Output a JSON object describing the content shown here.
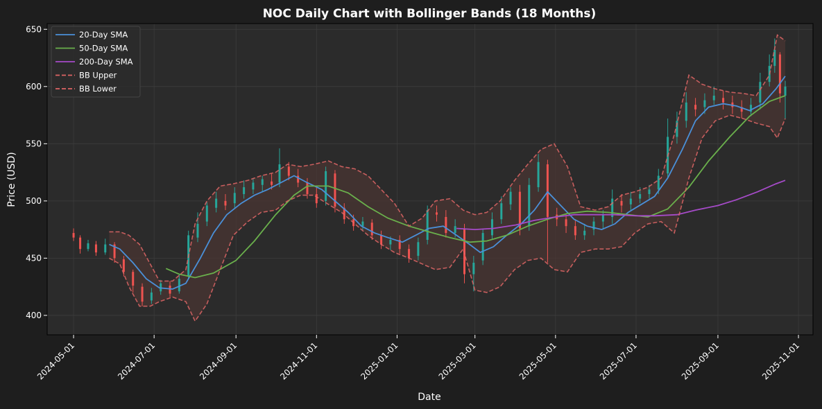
{
  "chart_data": {
    "type": "line",
    "title": "NOC Daily Chart with Bollinger Bands (18 Months)",
    "xlabel": "Date",
    "ylabel": "Price (USD)",
    "ylim": [
      383,
      655
    ],
    "xlim": [
      "2024-04-11",
      "2025-11-12"
    ],
    "grid": true,
    "legend_position": "top-left",
    "x_ticks": [
      "2024-05-01",
      "2024-07-01",
      "2024-09-01",
      "2024-11-01",
      "2025-01-01",
      "2025-03-01",
      "2025-05-01",
      "2025-07-01",
      "2025-09-01",
      "2025-11-01"
    ],
    "y_ticks": [
      400,
      450,
      500,
      550,
      600,
      650
    ],
    "colors": {
      "background": "#1e1e1e",
      "plot_background": "#2b2b2b",
      "up_candle": "#26a69a",
      "down_candle": "#ef5350",
      "band_fill": "#4a3533",
      "grid": "#3c3c3c"
    },
    "series": [
      {
        "name": "20-Day SMA",
        "color": "#4a90d9",
        "style": "solid",
        "x": [
          "2024-05-28",
          "2024-06-05",
          "2024-06-15",
          "2024-06-25",
          "2024-07-05",
          "2024-07-15",
          "2024-07-25",
          "2024-08-05",
          "2024-08-15",
          "2024-08-25",
          "2024-09-05",
          "2024-09-15",
          "2024-09-25",
          "2024-10-05",
          "2024-10-15",
          "2024-10-25",
          "2024-11-05",
          "2024-11-15",
          "2024-11-25",
          "2024-12-05",
          "2024-12-15",
          "2024-12-25",
          "2025-01-05",
          "2025-01-15",
          "2025-01-25",
          "2025-02-05",
          "2025-02-15",
          "2025-02-25",
          "2025-03-05",
          "2025-03-15",
          "2025-03-25",
          "2025-04-05",
          "2025-04-15",
          "2025-04-25",
          "2025-05-05",
          "2025-05-15",
          "2025-05-25",
          "2025-06-05",
          "2025-06-15",
          "2025-06-25",
          "2025-07-05",
          "2025-07-15",
          "2025-07-25",
          "2025-08-05",
          "2025-08-15",
          "2025-08-25",
          "2025-09-05",
          "2025-09-15",
          "2025-09-25",
          "2025-10-05",
          "2025-10-15",
          "2025-10-22"
        ],
        "values": [
          462,
          458,
          446,
          432,
          424,
          423,
          428,
          450,
          472,
          488,
          498,
          505,
          510,
          516,
          522,
          516,
          510,
          500,
          490,
          478,
          472,
          468,
          464,
          470,
          476,
          478,
          470,
          462,
          455,
          460,
          470,
          480,
          492,
          508,
          496,
          484,
          478,
          475,
          480,
          490,
          497,
          504,
          520,
          545,
          570,
          582,
          585,
          583,
          579,
          585,
          598,
          609
        ]
      },
      {
        "name": "50-Day SMA",
        "color": "#6ab04c",
        "style": "solid",
        "x": [
          "2024-07-10",
          "2024-07-20",
          "2024-08-01",
          "2024-08-15",
          "2024-09-01",
          "2024-09-15",
          "2024-10-01",
          "2024-10-15",
          "2024-10-25",
          "2024-11-10",
          "2024-11-25",
          "2024-12-10",
          "2024-12-25",
          "2025-01-10",
          "2025-01-25",
          "2025-02-10",
          "2025-02-25",
          "2025-03-10",
          "2025-03-25",
          "2025-04-10",
          "2025-04-25",
          "2025-05-10",
          "2025-05-25",
          "2025-06-10",
          "2025-06-25",
          "2025-07-10",
          "2025-07-25",
          "2025-08-10",
          "2025-08-25",
          "2025-09-10",
          "2025-09-25",
          "2025-10-10",
          "2025-10-22"
        ],
        "values": [
          441,
          436,
          433,
          437,
          448,
          465,
          488,
          505,
          513,
          513,
          507,
          495,
          485,
          478,
          473,
          468,
          464,
          465,
          470,
          478,
          484,
          489,
          491,
          490,
          488,
          486,
          493,
          512,
          535,
          556,
          574,
          587,
          592
        ]
      },
      {
        "name": "200-Day SMA",
        "color": "#a64bc9",
        "style": "solid",
        "x": [
          "2025-02-15",
          "2025-03-01",
          "2025-03-15",
          "2025-04-01",
          "2025-04-15",
          "2025-05-01",
          "2025-05-15",
          "2025-06-01",
          "2025-06-15",
          "2025-07-01",
          "2025-07-15",
          "2025-08-01",
          "2025-08-15",
          "2025-09-01",
          "2025-09-15",
          "2025-10-01",
          "2025-10-15",
          "2025-10-22"
        ],
        "values": [
          476,
          475,
          476,
          479,
          483,
          486,
          488,
          488,
          488,
          487,
          487,
          488,
          492,
          496,
          501,
          508,
          515,
          518
        ]
      },
      {
        "name": "BB Upper",
        "color": "#e06666",
        "style": "dashed",
        "x": [
          "2024-05-28",
          "2024-06-05",
          "2024-06-12",
          "2024-06-20",
          "2024-06-28",
          "2024-07-05",
          "2024-07-15",
          "2024-07-25",
          "2024-08-01",
          "2024-08-10",
          "2024-08-20",
          "2024-08-30",
          "2024-09-10",
          "2024-09-20",
          "2024-10-01",
          "2024-10-10",
          "2024-10-20",
          "2024-10-30",
          "2024-11-10",
          "2024-11-20",
          "2024-11-30",
          "2024-12-10",
          "2024-12-20",
          "2024-12-30",
          "2025-01-10",
          "2025-01-20",
          "2025-01-30",
          "2025-02-10",
          "2025-02-20",
          "2025-03-01",
          "2025-03-10",
          "2025-03-20",
          "2025-03-31",
          "2025-04-10",
          "2025-04-20",
          "2025-04-30",
          "2025-05-10",
          "2025-05-20",
          "2025-05-31",
          "2025-06-10",
          "2025-06-20",
          "2025-06-30",
          "2025-07-10",
          "2025-07-20",
          "2025-07-30",
          "2025-08-10",
          "2025-08-20",
          "2025-08-30",
          "2025-09-10",
          "2025-09-20",
          "2025-09-30",
          "2025-10-10",
          "2025-10-16",
          "2025-10-22"
        ],
        "values": [
          473,
          473,
          470,
          462,
          445,
          430,
          430,
          440,
          480,
          500,
          513,
          515,
          518,
          522,
          525,
          532,
          530,
          532,
          535,
          530,
          528,
          522,
          510,
          498,
          478,
          485,
          500,
          502,
          492,
          488,
          490,
          500,
          518,
          532,
          545,
          550,
          530,
          495,
          492,
          495,
          505,
          508,
          512,
          520,
          558,
          610,
          602,
          598,
          595,
          594,
          592,
          610,
          645,
          640
        ]
      },
      {
        "name": "BB Lower",
        "color": "#e06666",
        "style": "dashed",
        "x": [
          "2024-05-28",
          "2024-06-05",
          "2024-06-12",
          "2024-06-20",
          "2024-06-28",
          "2024-07-05",
          "2024-07-15",
          "2024-07-25",
          "2024-08-01",
          "2024-08-10",
          "2024-08-20",
          "2024-08-30",
          "2024-09-10",
          "2024-09-20",
          "2024-10-01",
          "2024-10-10",
          "2024-10-20",
          "2024-10-30",
          "2024-11-10",
          "2024-11-20",
          "2024-11-30",
          "2024-12-10",
          "2024-12-20",
          "2024-12-30",
          "2025-01-10",
          "2025-01-20",
          "2025-01-30",
          "2025-02-10",
          "2025-02-20",
          "2025-03-01",
          "2025-03-10",
          "2025-03-20",
          "2025-03-31",
          "2025-04-10",
          "2025-04-20",
          "2025-04-30",
          "2025-05-10",
          "2025-05-20",
          "2025-05-31",
          "2025-06-10",
          "2025-06-20",
          "2025-06-30",
          "2025-07-10",
          "2025-07-20",
          "2025-07-30",
          "2025-08-10",
          "2025-08-20",
          "2025-08-30",
          "2025-09-10",
          "2025-09-20",
          "2025-09-30",
          "2025-10-10",
          "2025-10-16",
          "2025-10-22"
        ],
        "values": [
          450,
          445,
          425,
          408,
          408,
          412,
          416,
          412,
          395,
          410,
          440,
          470,
          482,
          490,
          492,
          500,
          505,
          505,
          497,
          490,
          480,
          470,
          462,
          455,
          450,
          445,
          440,
          442,
          458,
          422,
          420,
          425,
          440,
          448,
          450,
          440,
          438,
          455,
          458,
          458,
          460,
          472,
          480,
          482,
          472,
          520,
          555,
          570,
          575,
          572,
          568,
          565,
          555,
          572
        ]
      }
    ],
    "candles": [
      {
        "d": "2024-05-01",
        "o": 472,
        "c": 468,
        "h": 476,
        "l": 465
      },
      {
        "d": "2024-05-06",
        "o": 468,
        "c": 458,
        "h": 470,
        "l": 454
      },
      {
        "d": "2024-05-12",
        "o": 458,
        "c": 463,
        "h": 466,
        "l": 456
      },
      {
        "d": "2024-05-18",
        "o": 462,
        "c": 455,
        "h": 465,
        "l": 452
      },
      {
        "d": "2024-05-25",
        "o": 455,
        "c": 462,
        "h": 467,
        "l": 453
      },
      {
        "d": "2024-06-01",
        "o": 462,
        "c": 450,
        "h": 464,
        "l": 446
      },
      {
        "d": "2024-06-08",
        "o": 449,
        "c": 438,
        "h": 452,
        "l": 434
      },
      {
        "d": "2024-06-15",
        "o": 438,
        "c": 426,
        "h": 440,
        "l": 420
      },
      {
        "d": "2024-06-22",
        "o": 425,
        "c": 412,
        "h": 428,
        "l": 408
      },
      {
        "d": "2024-06-29",
        "o": 413,
        "c": 420,
        "h": 424,
        "l": 410
      },
      {
        "d": "2024-07-06",
        "o": 421,
        "c": 428,
        "h": 431,
        "l": 418
      },
      {
        "d": "2024-07-13",
        "o": 426,
        "c": 419,
        "h": 430,
        "l": 416
      },
      {
        "d": "2024-07-20",
        "o": 421,
        "c": 432,
        "h": 436,
        "l": 419
      },
      {
        "d": "2024-07-27",
        "o": 434,
        "c": 470,
        "h": 474,
        "l": 432
      },
      {
        "d": "2024-08-03",
        "o": 468,
        "c": 480,
        "h": 490,
        "l": 464
      },
      {
        "d": "2024-08-10",
        "o": 482,
        "c": 496,
        "h": 499,
        "l": 478
      },
      {
        "d": "2024-08-17",
        "o": 494,
        "c": 502,
        "h": 508,
        "l": 490
      },
      {
        "d": "2024-08-24",
        "o": 500,
        "c": 496,
        "h": 506,
        "l": 492
      },
      {
        "d": "2024-08-31",
        "o": 498,
        "c": 507,
        "h": 512,
        "l": 494
      },
      {
        "d": "2024-09-07",
        "o": 506,
        "c": 512,
        "h": 518,
        "l": 502
      },
      {
        "d": "2024-09-14",
        "o": 510,
        "c": 516,
        "h": 520,
        "l": 506
      },
      {
        "d": "2024-09-21",
        "o": 514,
        "c": 519,
        "h": 522,
        "l": 508
      },
      {
        "d": "2024-09-28",
        "o": 517,
        "c": 514,
        "h": 524,
        "l": 510
      },
      {
        "d": "2024-10-04",
        "o": 516,
        "c": 532,
        "h": 546,
        "l": 512
      },
      {
        "d": "2024-10-11",
        "o": 530,
        "c": 522,
        "h": 534,
        "l": 518
      },
      {
        "d": "2024-10-18",
        "o": 522,
        "c": 516,
        "h": 528,
        "l": 512
      },
      {
        "d": "2024-10-25",
        "o": 516,
        "c": 506,
        "h": 520,
        "l": 502
      },
      {
        "d": "2024-11-01",
        "o": 506,
        "c": 498,
        "h": 512,
        "l": 494
      },
      {
        "d": "2024-11-08",
        "o": 500,
        "c": 526,
        "h": 530,
        "l": 496
      },
      {
        "d": "2024-11-15",
        "o": 524,
        "c": 495,
        "h": 527,
        "l": 490
      },
      {
        "d": "2024-11-22",
        "o": 494,
        "c": 484,
        "h": 498,
        "l": 480
      },
      {
        "d": "2024-11-29",
        "o": 484,
        "c": 478,
        "h": 488,
        "l": 474
      },
      {
        "d": "2024-12-06",
        "o": 478,
        "c": 482,
        "h": 486,
        "l": 474
      },
      {
        "d": "2024-12-13",
        "o": 481,
        "c": 470,
        "h": 484,
        "l": 466
      },
      {
        "d": "2024-12-20",
        "o": 470,
        "c": 462,
        "h": 474,
        "l": 458
      },
      {
        "d": "2024-12-27",
        "o": 462,
        "c": 466,
        "h": 469,
        "l": 457
      },
      {
        "d": "2025-01-03",
        "o": 466,
        "c": 458,
        "h": 470,
        "l": 454
      },
      {
        "d": "2025-01-10",
        "o": 458,
        "c": 450,
        "h": 462,
        "l": 446
      },
      {
        "d": "2025-01-17",
        "o": 452,
        "c": 464,
        "h": 468,
        "l": 448
      },
      {
        "d": "2025-01-24",
        "o": 466,
        "c": 492,
        "h": 496,
        "l": 462
      },
      {
        "d": "2025-01-31",
        "o": 490,
        "c": 488,
        "h": 496,
        "l": 482
      },
      {
        "d": "2025-02-07",
        "o": 486,
        "c": 472,
        "h": 492,
        "l": 468
      },
      {
        "d": "2025-02-14",
        "o": 472,
        "c": 478,
        "h": 484,
        "l": 468
      },
      {
        "d": "2025-02-21",
        "o": 476,
        "c": 436,
        "h": 480,
        "l": 428
      },
      {
        "d": "2025-02-28",
        "o": 436,
        "c": 446,
        "h": 452,
        "l": 421
      },
      {
        "d": "2025-03-07",
        "o": 448,
        "c": 472,
        "h": 476,
        "l": 444
      },
      {
        "d": "2025-03-14",
        "o": 470,
        "c": 484,
        "h": 490,
        "l": 466
      },
      {
        "d": "2025-03-21",
        "o": 484,
        "c": 498,
        "h": 504,
        "l": 480
      },
      {
        "d": "2025-03-28",
        "o": 497,
        "c": 508,
        "h": 512,
        "l": 492
      },
      {
        "d": "2025-04-04",
        "o": 508,
        "c": 476,
        "h": 514,
        "l": 470
      },
      {
        "d": "2025-04-11",
        "o": 478,
        "c": 514,
        "h": 520,
        "l": 474
      },
      {
        "d": "2025-04-18",
        "o": 512,
        "c": 534,
        "h": 541,
        "l": 508
      },
      {
        "d": "2025-04-25",
        "o": 532,
        "c": 486,
        "h": 536,
        "l": 446
      },
      {
        "d": "2025-05-02",
        "o": 488,
        "c": 484,
        "h": 494,
        "l": 478
      },
      {
        "d": "2025-05-09",
        "o": 484,
        "c": 478,
        "h": 488,
        "l": 472
      },
      {
        "d": "2025-05-16",
        "o": 478,
        "c": 470,
        "h": 484,
        "l": 466
      },
      {
        "d": "2025-05-23",
        "o": 470,
        "c": 474,
        "h": 480,
        "l": 466
      },
      {
        "d": "2025-05-30",
        "o": 475,
        "c": 482,
        "h": 486,
        "l": 470
      },
      {
        "d": "2025-06-06",
        "o": 482,
        "c": 488,
        "h": 492,
        "l": 476
      },
      {
        "d": "2025-06-13",
        "o": 486,
        "c": 502,
        "h": 510,
        "l": 480
      },
      {
        "d": "2025-06-20",
        "o": 500,
        "c": 496,
        "h": 506,
        "l": 490
      },
      {
        "d": "2025-06-27",
        "o": 497,
        "c": 502,
        "h": 508,
        "l": 492
      },
      {
        "d": "2025-07-04",
        "o": 502,
        "c": 506,
        "h": 512,
        "l": 498
      },
      {
        "d": "2025-07-11",
        "o": 506,
        "c": 510,
        "h": 514,
        "l": 502
      },
      {
        "d": "2025-07-18",
        "o": 510,
        "c": 522,
        "h": 528,
        "l": 506
      },
      {
        "d": "2025-07-25",
        "o": 524,
        "c": 556,
        "h": 572,
        "l": 520
      },
      {
        "d": "2025-08-01",
        "o": 556,
        "c": 570,
        "h": 578,
        "l": 550
      },
      {
        "d": "2025-08-08",
        "o": 570,
        "c": 586,
        "h": 595,
        "l": 564
      },
      {
        "d": "2025-08-15",
        "o": 584,
        "c": 580,
        "h": 590,
        "l": 574
      },
      {
        "d": "2025-08-22",
        "o": 582,
        "c": 588,
        "h": 594,
        "l": 576
      },
      {
        "d": "2025-08-29",
        "o": 588,
        "c": 592,
        "h": 600,
        "l": 584
      },
      {
        "d": "2025-09-05",
        "o": 590,
        "c": 586,
        "h": 596,
        "l": 580
      },
      {
        "d": "2025-09-12",
        "o": 586,
        "c": 582,
        "h": 592,
        "l": 576
      },
      {
        "d": "2025-09-19",
        "o": 582,
        "c": 578,
        "h": 588,
        "l": 572
      },
      {
        "d": "2025-09-26",
        "o": 578,
        "c": 584,
        "h": 590,
        "l": 574
      },
      {
        "d": "2025-10-03",
        "o": 586,
        "c": 604,
        "h": 612,
        "l": 580
      },
      {
        "d": "2025-10-10",
        "o": 604,
        "c": 618,
        "h": 628,
        "l": 600
      },
      {
        "d": "2025-10-14",
        "o": 618,
        "c": 632,
        "h": 642,
        "l": 612
      },
      {
        "d": "2025-10-18",
        "o": 628,
        "c": 594,
        "h": 630,
        "l": 586
      },
      {
        "d": "2025-10-22",
        "o": 592,
        "c": 600,
        "h": 605,
        "l": 572
      }
    ]
  }
}
